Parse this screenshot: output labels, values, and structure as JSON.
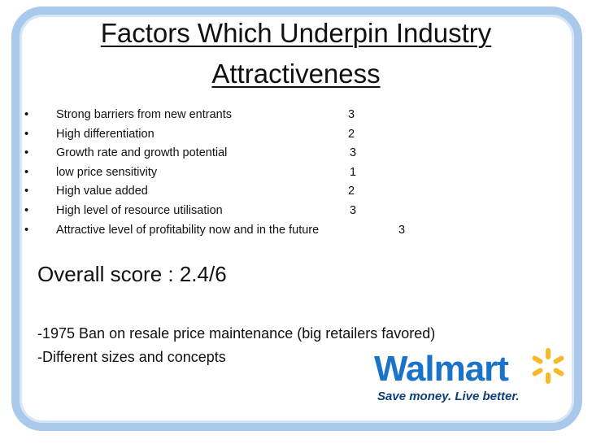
{
  "header": {
    "title_line1": "Factors Which Underpin Industry",
    "title_line2": "Attractiveness"
  },
  "factors": [
    {
      "text": "Strong barriers from new entrants",
      "score": 3
    },
    {
      "text": "High differentiation",
      "score": 2
    },
    {
      "text": "Growth rate and growth potential",
      "score": 3
    },
    {
      "text": "low price sensitivity",
      "score": 1
    },
    {
      "text": "High value added",
      "score": 2
    },
    {
      "text": "High level of resource utilisation",
      "score": 3
    },
    {
      "text": "Attractive level of profitability now and in the future",
      "score": 3
    }
  ],
  "overall": "Overall score : 2.4/6",
  "notes": [
    "-1975 Ban on resale price maintenance (big retailers favored)",
    "-Different sizes and concepts"
  ],
  "logo": {
    "wordmark": "Walmart",
    "tagline": "Save money. Live better."
  }
}
